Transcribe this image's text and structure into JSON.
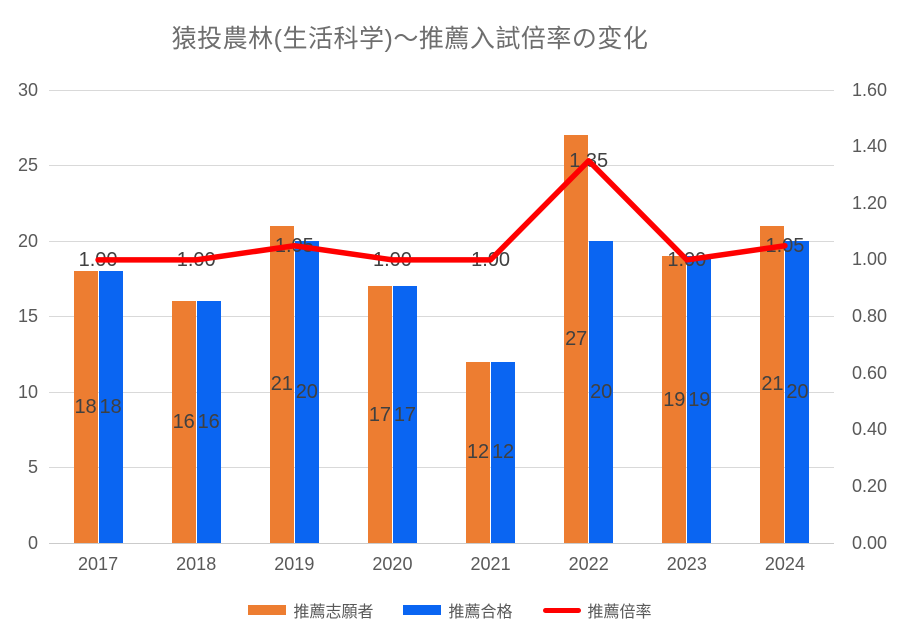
{
  "chart_data": {
    "type": "combo",
    "title": "猿投農林(生活科学)～推薦入試倍率の変化",
    "categories": [
      "2017",
      "2018",
      "2019",
      "2020",
      "2021",
      "2022",
      "2023",
      "2024"
    ],
    "series": [
      {
        "name": "推薦志願者",
        "type": "bar",
        "axis": "left",
        "color": "#ED7D31",
        "values": [
          18,
          16,
          21,
          17,
          12,
          27,
          19,
          21
        ]
      },
      {
        "name": "推薦合格",
        "type": "bar",
        "axis": "left",
        "color": "#0A65F2",
        "values": [
          18,
          16,
          20,
          17,
          12,
          20,
          19,
          20
        ]
      },
      {
        "name": "推薦倍率",
        "type": "line",
        "axis": "right",
        "color": "#FF0000",
        "values": [
          1.0,
          1.0,
          1.05,
          1.0,
          1.0,
          1.35,
          1.0,
          1.05
        ],
        "labels": [
          "1.00",
          "1.00",
          "1.05",
          "1.00",
          "1.00",
          "1.35",
          "1.00",
          "1.05"
        ]
      }
    ],
    "left_axis": {
      "min": 0,
      "max": 30,
      "step": 5,
      "ticks": [
        "0",
        "5",
        "10",
        "15",
        "20",
        "25",
        "30"
      ]
    },
    "right_axis": {
      "min": 0.0,
      "max": 1.6,
      "step": 0.2,
      "ticks": [
        "0.00",
        "0.20",
        "0.40",
        "0.60",
        "0.80",
        "1.00",
        "1.20",
        "1.40",
        "1.60"
      ]
    },
    "legend": {
      "position": "bottom",
      "entries": [
        "推薦志願者",
        "推薦合格",
        "推薦倍率"
      ]
    },
    "gridlines": true,
    "colors": {
      "grid": "#D9D9D9",
      "axis_text": "#595959",
      "data_label": "#404040",
      "title_text": "#6E6E6E",
      "background": "#FFFFFF"
    }
  }
}
